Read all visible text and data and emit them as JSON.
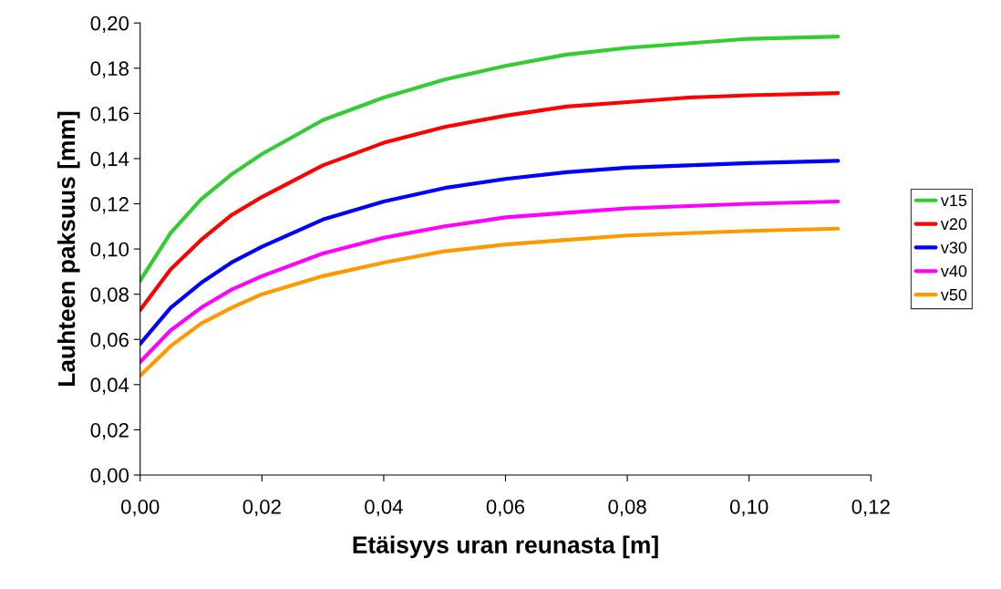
{
  "chart_data": {
    "type": "line",
    "xlabel": "Etäisyys uran reunasta [m]",
    "ylabel": "Lauhteen paksuus [mm]",
    "x": [
      0,
      0.005,
      0.01,
      0.015,
      0.02,
      0.03,
      0.04,
      0.05,
      0.06,
      0.07,
      0.08,
      0.09,
      0.1,
      0.1146
    ],
    "series": [
      {
        "name": "v15",
        "color": "#33cc33",
        "values": [
          0.086,
          0.107,
          0.122,
          0.133,
          0.142,
          0.157,
          0.167,
          0.175,
          0.181,
          0.186,
          0.189,
          0.191,
          0.193,
          0.194
        ]
      },
      {
        "name": "v20",
        "color": "#ff0000",
        "values": [
          0.073,
          0.091,
          0.104,
          0.115,
          0.123,
          0.137,
          0.147,
          0.154,
          0.159,
          0.163,
          0.165,
          0.167,
          0.168,
          0.169
        ]
      },
      {
        "name": "v30",
        "color": "#0000ff",
        "values": [
          0.058,
          0.074,
          0.085,
          0.094,
          0.101,
          0.113,
          0.121,
          0.127,
          0.131,
          0.134,
          0.136,
          0.137,
          0.138,
          0.139
        ]
      },
      {
        "name": "v40",
        "color": "#ff00ff",
        "values": [
          0.05,
          0.064,
          0.074,
          0.082,
          0.088,
          0.098,
          0.105,
          0.11,
          0.114,
          0.116,
          0.118,
          0.119,
          0.12,
          0.121
        ]
      },
      {
        "name": "v50",
        "color": "#ff9900",
        "values": [
          0.044,
          0.057,
          0.067,
          0.074,
          0.08,
          0.088,
          0.094,
          0.099,
          0.102,
          0.104,
          0.106,
          0.107,
          0.108,
          0.109
        ]
      }
    ],
    "xlim": [
      0,
      0.12
    ],
    "xticks": [
      {
        "value": 0,
        "label": "0,00"
      },
      {
        "value": 0.02,
        "label": "0,02"
      },
      {
        "value": 0.04,
        "label": "0,04"
      },
      {
        "value": 0.06,
        "label": "0,06"
      },
      {
        "value": 0.08,
        "label": "0,08"
      },
      {
        "value": 0.1,
        "label": "0,10"
      },
      {
        "value": 0.12,
        "label": "0,12"
      }
    ],
    "ylim": [
      0,
      0.2
    ],
    "yticks": [
      {
        "value": 0,
        "label": "0,00"
      },
      {
        "value": 0.02,
        "label": "0,02"
      },
      {
        "value": 0.04,
        "label": "0,04"
      },
      {
        "value": 0.06,
        "label": "0,06"
      },
      {
        "value": 0.08,
        "label": "0,08"
      },
      {
        "value": 0.1,
        "label": "0,10"
      },
      {
        "value": 0.12,
        "label": "0,12"
      },
      {
        "value": 0.14,
        "label": "0,14"
      },
      {
        "value": 0.16,
        "label": "0,16"
      },
      {
        "value": 0.18,
        "label": "0,18"
      },
      {
        "value": 0.2,
        "label": "0,20"
      }
    ],
    "grid": false,
    "legend": "right",
    "marker": "none",
    "line_style": "solid"
  }
}
